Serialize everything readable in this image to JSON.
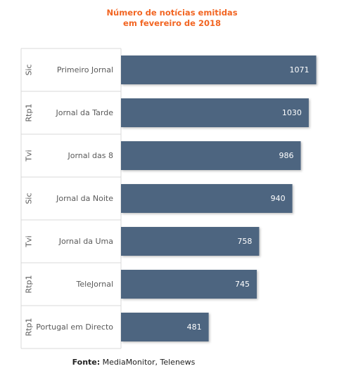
{
  "chart_data": {
    "type": "bar",
    "orientation": "horizontal",
    "title_lines": [
      "Número de notícias emitidas",
      "em fevereiro de 2018"
    ],
    "groups": [
      "Sic",
      "Rtp1",
      "Tvi",
      "Sic",
      "Tvi",
      "Rtp1",
      "Rtp1"
    ],
    "categories": [
      "Primeiro Jornal",
      "Jornal da Tarde",
      "Jornal das 8",
      "Jornal da Noite",
      "Jornal da Uma",
      "TeleJornal",
      "Portugal em Directo"
    ],
    "values": [
      1071,
      1030,
      986,
      940,
      758,
      745,
      481
    ],
    "xlim": [
      0,
      1150
    ],
    "bar_color": "#4e6580",
    "label_color": "#ffffff",
    "grid": false,
    "legend": "none"
  },
  "source": {
    "label": "Fonte:",
    "text": " MediaMonitor, Telenews"
  }
}
